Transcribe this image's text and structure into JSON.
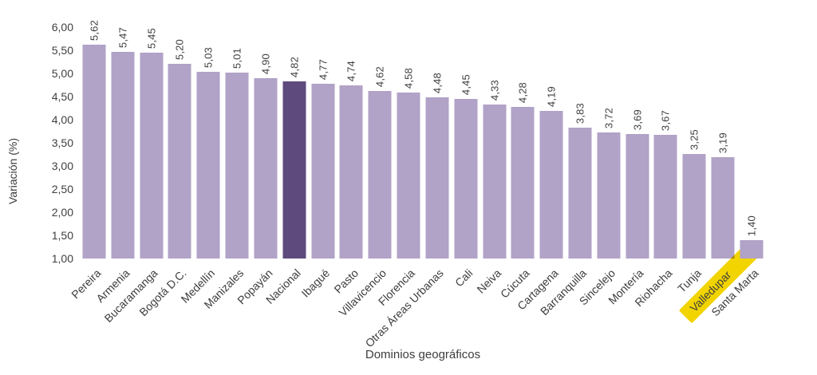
{
  "chart_data": {
    "type": "bar",
    "title": "",
    "xlabel": "Dominios geográficos",
    "ylabel": "Variación (%)",
    "ylim": [
      1.0,
      6.0
    ],
    "ytick_step": 0.5,
    "ytick_labels": [
      "6,00",
      "5,50",
      "5,00",
      "4,50",
      "4,00",
      "3,50",
      "3,00",
      "2,50",
      "2,00",
      "1,50",
      "1,00"
    ],
    "grid": false,
    "legend": false,
    "x_label_rotation_deg": -45,
    "value_label_rotation": "vertical",
    "categories": [
      "Pereira",
      "Armenia",
      "Bucaramanga",
      "Bogotá D.C.",
      "Medellín",
      "Manizales",
      "Popayán",
      "Nacional",
      "Ibagué",
      "Pasto",
      "Villavicencio",
      "Florencia",
      "Otras Áreas Urbanas",
      "Cali",
      "Neiva",
      "Cúcuta",
      "Cartagena",
      "Barranquilla",
      "Sincelejo",
      "Montería",
      "Riohacha",
      "Tunja",
      "Valledupar",
      "Santa Marta"
    ],
    "values": [
      5.62,
      5.47,
      5.45,
      5.2,
      5.03,
      5.01,
      4.9,
      4.82,
      4.77,
      4.74,
      4.62,
      4.58,
      4.48,
      4.45,
      4.33,
      4.28,
      4.19,
      3.83,
      3.72,
      3.69,
      3.67,
      3.25,
      3.19,
      1.4
    ],
    "value_labels": [
      "5,62",
      "5,47",
      "5,45",
      "5,20",
      "5,03",
      "5,01",
      "4,90",
      "4,82",
      "4,77",
      "4,74",
      "4,62",
      "4,58",
      "4,48",
      "4,45",
      "4,33",
      "4,28",
      "4,19",
      "3,83",
      "3,72",
      "3,69",
      "3,67",
      "3,25",
      "3,19",
      "1,40"
    ],
    "emphasized_category": "Nacional",
    "highlighted_label_category": "Valledupar",
    "colors": {
      "bar": "#b1a2c7",
      "emphasized_bar": "#5e4a7d",
      "label_highlight": "#f2d400",
      "text": "#404040",
      "background": "#ffffff"
    }
  }
}
